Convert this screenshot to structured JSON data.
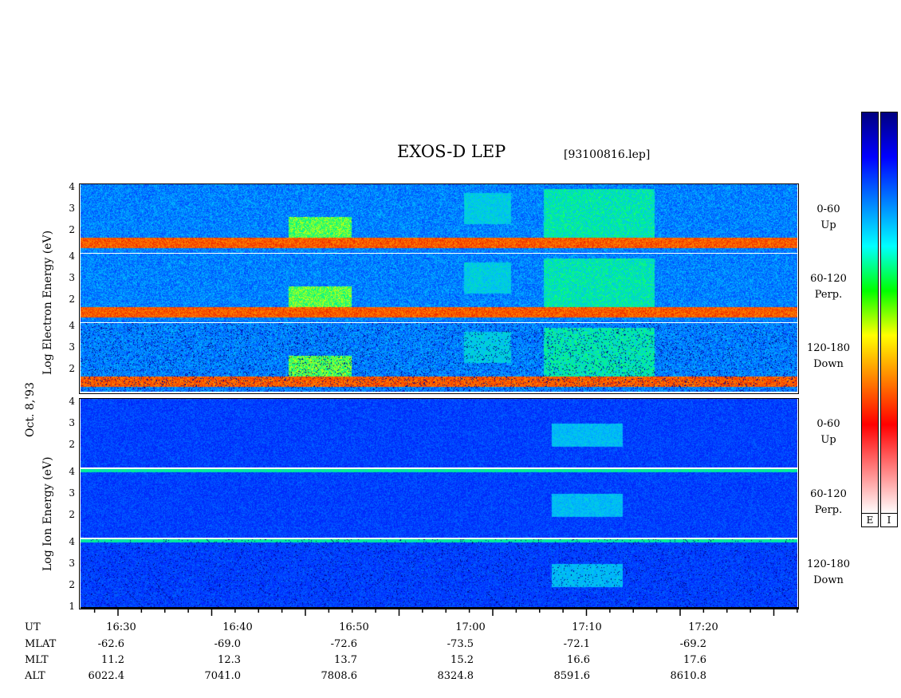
{
  "title": "EXOS-D LEP",
  "filename": "[93100816.lep]",
  "chart_data": {
    "type": "heatmap",
    "date_label": "Oct. 8,'93",
    "electron_group": {
      "ylabel": "Log Electron Energy (eV)"
    },
    "ion_group": {
      "ylabel": "Log Ion Energy (eV)"
    },
    "y_ticks": [
      "4",
      "3",
      "2"
    ],
    "y_ticks_ion_bottom": [
      "4",
      "3",
      "2",
      "1"
    ],
    "panels": [
      {
        "species": "electron",
        "label_line1": "0-60",
        "label_line2": "Up"
      },
      {
        "species": "electron",
        "label_line1": "60-120",
        "label_line2": "Perp."
      },
      {
        "species": "electron",
        "label_line1": "120-180",
        "label_line2": "Down"
      },
      {
        "species": "ion",
        "label_line1": "0-60",
        "label_line2": "Up"
      },
      {
        "species": "ion",
        "label_line1": "60-120",
        "label_line2": "Perp."
      },
      {
        "species": "ion",
        "label_line1": "120-180",
        "label_line2": "Down"
      }
    ],
    "x_axis": {
      "row_labels": [
        "UT",
        "MLAT",
        "MLT",
        "ALT"
      ],
      "ticks": [
        {
          "UT": "16:30",
          "MLAT": "-62.6",
          "MLT": "11.2",
          "ALT": "6022.4"
        },
        {
          "UT": "16:40",
          "MLAT": "-69.0",
          "MLT": "12.3",
          "ALT": "7041.0"
        },
        {
          "UT": "16:50",
          "MLAT": "-72.6",
          "MLT": "13.7",
          "ALT": "7808.6"
        },
        {
          "UT": "17:00",
          "MLAT": "-73.5",
          "MLT": "15.2",
          "ALT": "8324.8"
        },
        {
          "UT": "17:10",
          "MLAT": "-72.1",
          "MLT": "16.6",
          "ALT": "8591.6"
        },
        {
          "UT": "17:20",
          "MLAT": "-69.2",
          "MLT": "17.6",
          "ALT": "8610.8"
        }
      ]
    },
    "colorbar_labels": [
      "E",
      "I"
    ],
    "colorbar_colors": [
      "#ffffff",
      "#ff8080",
      "#ff0000",
      "#ff8000",
      "#ffff00",
      "#00ff00",
      "#00ffff",
      "#0080ff",
      "#0000ff",
      "#000080"
    ]
  }
}
